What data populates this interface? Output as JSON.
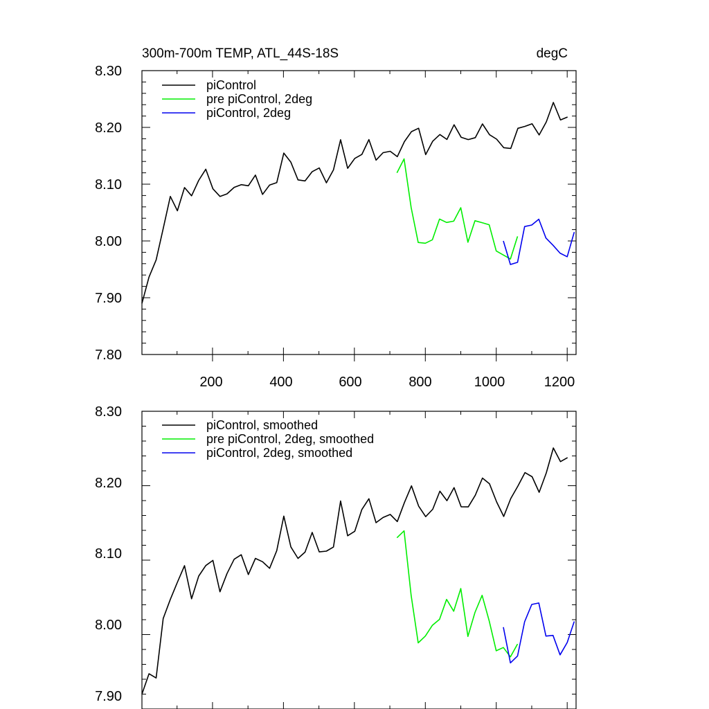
{
  "chart_data": [
    {
      "type": "line",
      "title": "300m-700m TEMP, ATL_44S-18S",
      "units": "degC",
      "xlim": [
        1,
        1225
      ],
      "ylim": [
        7.8,
        8.3
      ],
      "xticks": [
        200,
        400,
        600,
        800,
        1000,
        1200
      ],
      "xtick_labels": [
        "200",
        "400",
        "600",
        "800",
        "1000",
        "1200"
      ],
      "yticks": [
        7.8,
        7.9,
        8.0,
        8.1,
        8.2,
        8.3
      ],
      "ytick_labels": [
        "7.80",
        "7.90",
        "8.00",
        "8.10",
        "8.20",
        "8.30"
      ],
      "legend_position": "top-left",
      "series": [
        {
          "name": "piControl",
          "color": "#000000",
          "x_start": 1,
          "x_step": 20,
          "values": [
            7.89,
            7.94,
            7.96,
            8.03,
            8.07,
            8.06,
            8.09,
            8.08,
            8.11,
            8.12,
            8.1,
            8.07,
            8.09,
            8.09,
            8.1,
            8.1,
            8.11,
            8.09,
            8.09,
            8.11,
            8.15,
            8.14,
            8.11,
            8.1,
            8.13,
            8.12,
            8.11,
            8.12,
            8.18,
            8.13,
            8.14,
            8.16,
            8.17,
            8.15,
            8.15,
            8.16,
            8.15,
            8.17,
            8.2,
            8.19,
            8.16,
            8.17,
            8.19,
            8.18,
            8.2,
            8.19,
            8.17,
            8.19,
            8.2,
            8.19,
            8.18,
            8.16,
            8.17,
            8.19,
            8.21,
            8.2,
            8.19,
            8.21,
            8.24,
            8.22,
            8.21
          ]
        },
        {
          "name": "pre piControl, 2deg",
          "color": "#00ee00",
          "x_start": 720,
          "x_step": 20,
          "values": [
            8.12,
            8.14,
            8.06,
            8.0,
            7.99,
            8.01,
            8.03,
            8.04,
            8.03,
            8.06,
            8.0,
            8.03,
            8.04,
            8.02,
            7.99,
            7.97,
            7.97,
            8.01
          ]
        },
        {
          "name": "piControl, 2deg",
          "color": "#0000ee",
          "x_start": 1020,
          "x_step": 20,
          "values": [
            8.0,
            7.95,
            7.97,
            8.02,
            8.03,
            8.04,
            8.0,
            8.0,
            7.97,
            7.98,
            8.01
          ]
        }
      ]
    },
    {
      "type": "line",
      "title": "",
      "xlim": [
        1,
        1225
      ],
      "ylim": [
        7.9,
        8.3
      ],
      "xticks": [
        200,
        400,
        600,
        800,
        1000,
        1200
      ],
      "yticks": [
        7.9,
        8.0,
        8.1,
        8.2,
        8.3
      ],
      "ytick_labels": [
        "7.90",
        "8.00",
        "8.10",
        "8.20",
        "8.30"
      ],
      "legend_position": "top-left",
      "series": [
        {
          "name": "piControl, smoothed",
          "color": "#000000",
          "x_start": 1,
          "x_step": 20,
          "values": [
            7.92,
            7.95,
            7.94,
            8.02,
            8.05,
            8.07,
            8.09,
            8.05,
            8.08,
            8.09,
            8.1,
            8.06,
            8.08,
            8.1,
            8.11,
            8.08,
            8.1,
            8.1,
            8.09,
            8.11,
            8.16,
            8.12,
            8.1,
            8.11,
            8.14,
            8.11,
            8.11,
            8.12,
            8.18,
            8.13,
            8.14,
            8.17,
            8.18,
            8.15,
            8.16,
            8.16,
            8.15,
            8.18,
            8.2,
            8.17,
            8.16,
            8.17,
            8.19,
            8.18,
            8.2,
            8.17,
            8.17,
            8.19,
            8.21,
            8.2,
            8.18,
            8.16,
            8.18,
            8.2,
            8.22,
            8.21,
            8.19,
            8.22,
            8.25,
            8.23,
            8.24
          ]
        },
        {
          "name": "pre piControl, 2deg, smoothed",
          "color": "#00ee00",
          "x_start": 720,
          "x_step": 20,
          "values": [
            8.13,
            8.14,
            8.05,
            7.99,
            8.0,
            8.01,
            8.02,
            8.05,
            8.03,
            8.06,
            8.0,
            8.03,
            8.05,
            8.02,
            7.98,
            7.98,
            7.97,
            7.99
          ]
        },
        {
          "name": "piControl, 2deg, smoothed",
          "color": "#0000ee",
          "x_start": 1020,
          "x_step": 20,
          "values": [
            8.01,
            7.96,
            7.97,
            8.02,
            8.04,
            8.04,
            8.0,
            8.0,
            7.97,
            7.99,
            8.02
          ]
        }
      ]
    }
  ]
}
